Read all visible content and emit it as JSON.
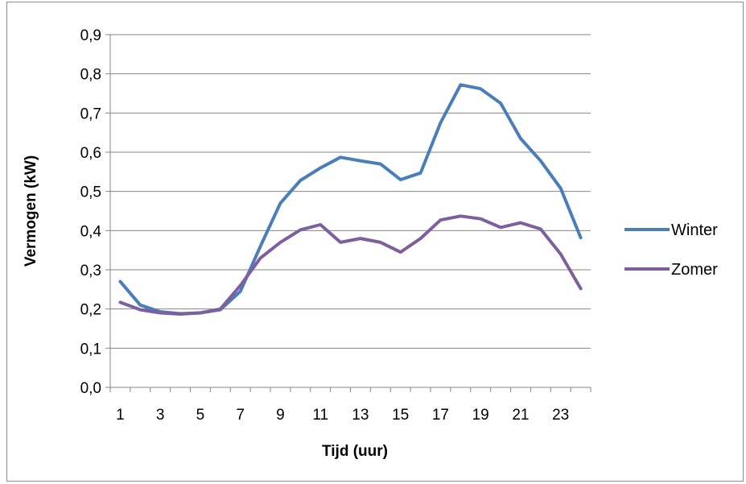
{
  "chart_data": {
    "type": "line",
    "xlabel": "Tijd (uur)",
    "ylabel": "Vermogen (kW)",
    "x": [
      1,
      2,
      3,
      4,
      5,
      6,
      7,
      8,
      9,
      10,
      11,
      12,
      13,
      14,
      15,
      16,
      17,
      18,
      19,
      20,
      21,
      22,
      23,
      24
    ],
    "x_tick_labels": [
      "1",
      "3",
      "5",
      "7",
      "9",
      "11",
      "13",
      "15",
      "17",
      "19",
      "21",
      "23"
    ],
    "y_tick_labels": [
      "0,0",
      "0,1",
      "0,2",
      "0,3",
      "0,4",
      "0,5",
      "0,6",
      "0,7",
      "0,8",
      "0,9"
    ],
    "ylim": [
      0,
      0.9
    ],
    "grid": true,
    "legend": "right",
    "series": [
      {
        "name": "Winter",
        "color": "#4a7ebb",
        "values": [
          0.27,
          0.21,
          0.193,
          0.188,
          0.19,
          0.198,
          0.245,
          0.36,
          0.47,
          0.528,
          0.56,
          0.587,
          0.578,
          0.57,
          0.53,
          0.547,
          0.675,
          0.772,
          0.762,
          0.725,
          0.635,
          0.578,
          0.508,
          0.382
        ]
      },
      {
        "name": "Zomer",
        "color": "#7d5fa0",
        "values": [
          0.217,
          0.198,
          0.19,
          0.187,
          0.19,
          0.2,
          0.26,
          0.33,
          0.37,
          0.402,
          0.415,
          0.37,
          0.38,
          0.37,
          0.345,
          0.38,
          0.427,
          0.437,
          0.43,
          0.408,
          0.42,
          0.404,
          0.34,
          0.252
        ]
      }
    ]
  }
}
